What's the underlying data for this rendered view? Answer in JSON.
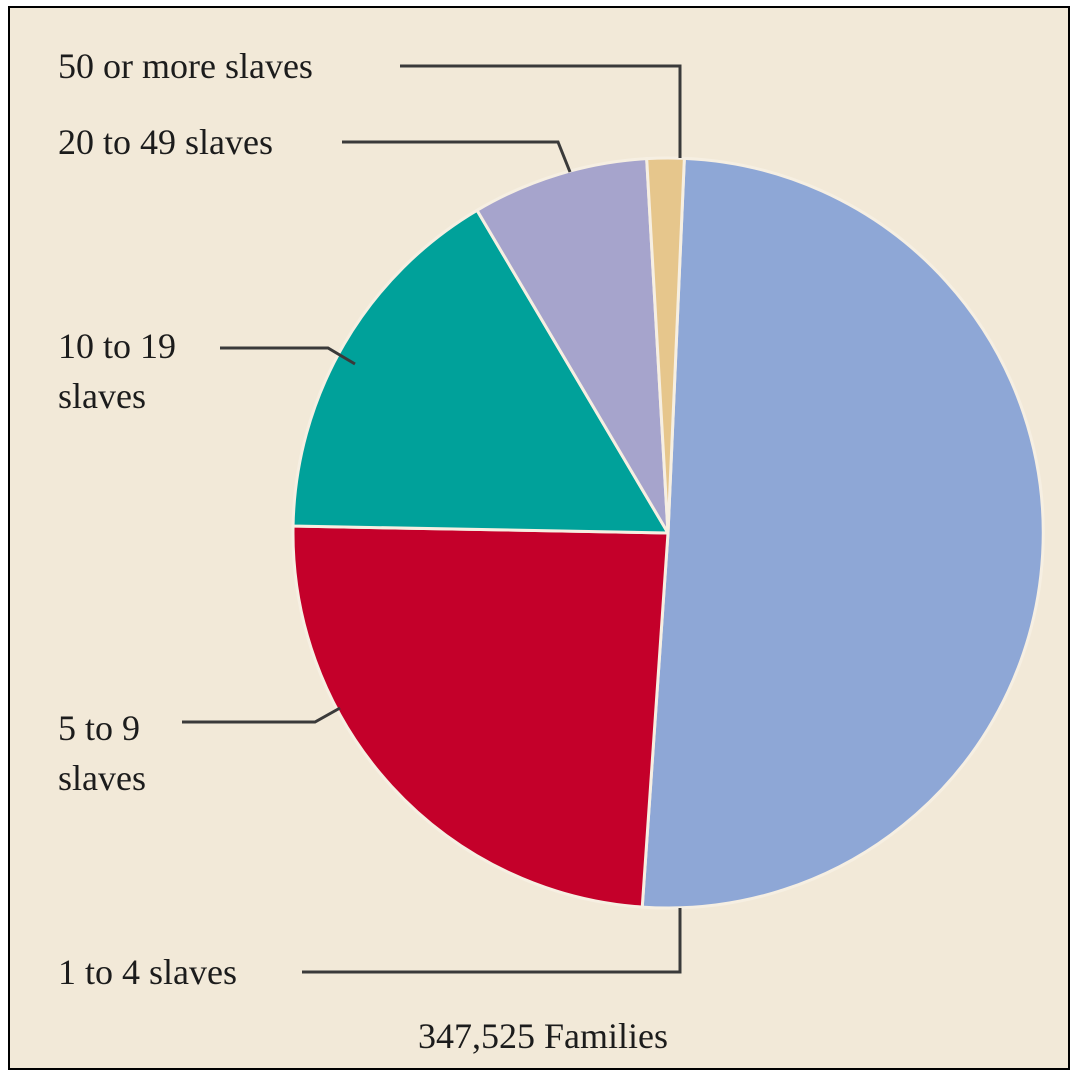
{
  "chart_data": {
    "type": "pie",
    "caption": "347,525 Families",
    "slices": [
      {
        "label": "1 to 4 slaves",
        "label_lines": [
          "1 to 4 slaves"
        ],
        "value": 50.4,
        "color": "#8ea7d6"
      },
      {
        "label": "5 to 9 slaves",
        "label_lines": [
          "5 to 9",
          "slaves"
        ],
        "value": 24.2,
        "color": "#c4002a"
      },
      {
        "label": "10 to 19 slaves",
        "label_lines": [
          "10 to 19",
          "slaves"
        ],
        "value": 16.2,
        "color": "#00a19a"
      },
      {
        "label": "20 to 49 slaves",
        "label_lines": [
          "20 to 49 slaves"
        ],
        "value": 7.6,
        "color": "#a6a4cc"
      },
      {
        "label": "50 or more slaves",
        "label_lines": [
          "50 or more slaves"
        ],
        "value": 1.6,
        "color": "#e6c68c"
      }
    ]
  }
}
